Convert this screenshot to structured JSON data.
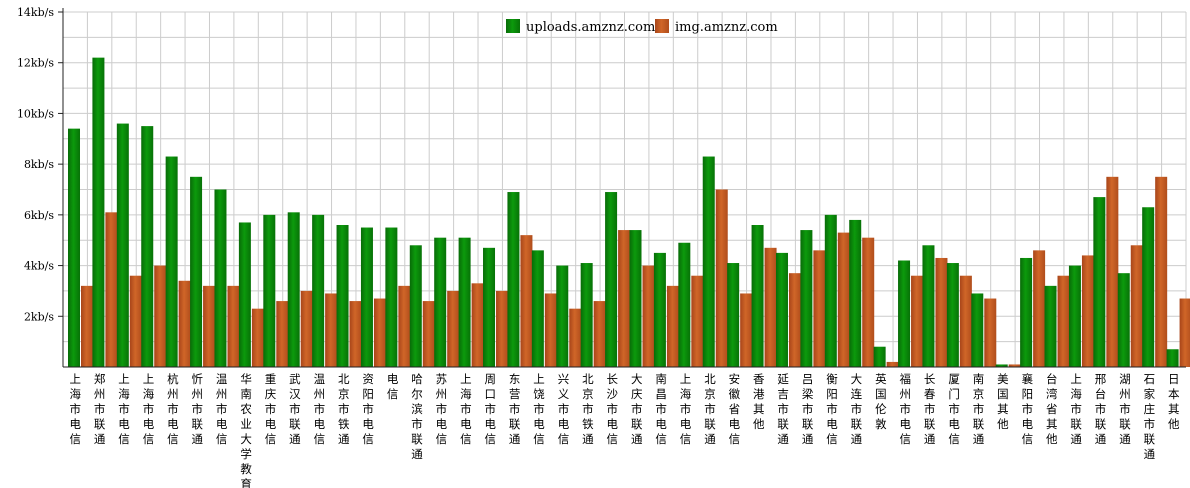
{
  "chart_data": {
    "type": "bar",
    "ylim": [
      0,
      14
    ],
    "yticks": [
      {
        "value": 2,
        "label": "2kb/s"
      },
      {
        "value": 4,
        "label": "4kb/s"
      },
      {
        "value": 6,
        "label": "6kb/s"
      },
      {
        "value": 8,
        "label": "8kb/s"
      },
      {
        "value": 10,
        "label": "10kb/s"
      },
      {
        "value": 12,
        "label": "12kb/s"
      },
      {
        "value": 14,
        "label": "14kb/s"
      }
    ],
    "grid": true,
    "legend_position": "top-center",
    "categories": [
      "上海市电信",
      "郑州市联通",
      "上海市电信",
      "上海市电信",
      "杭州市电信",
      "忻州市联通",
      "温州市电信",
      "华南农业大学教育",
      "重庆市电信",
      "武汉市联通",
      "温州市电信",
      "北京市铁通",
      "资阳市电信",
      "电信",
      "哈尔滨市联通",
      "苏州市电信",
      "上海市电信",
      "周口市电信",
      "东营市联通",
      "上饶市电信",
      "兴义市电信",
      "北京市铁通",
      "长沙市电信",
      "大庆市联通",
      "南昌市电信",
      "上海市电信",
      "北京市联通",
      "安徽省电信",
      "香港其他",
      "延吉市联通",
      "吕梁市联通",
      "衡阳市电信",
      "大连市联通",
      "英国伦敦",
      "福州市电信",
      "长春市联通",
      "厦门市电信",
      "南京市联通",
      "美国其他",
      "襄阳市电信",
      "台湾省其他",
      "上海市联通",
      "邢台市联通",
      "湖州市联通",
      "石家庄市联通",
      "日本其他"
    ],
    "series": [
      {
        "name": "uploads.amznz.com",
        "color": "#0a8a0a",
        "values": [
          9.4,
          12.2,
          9.6,
          9.5,
          8.3,
          7.5,
          7.0,
          5.7,
          6.0,
          6.1,
          6.0,
          5.6,
          5.5,
          5.5,
          4.8,
          5.1,
          5.1,
          4.7,
          6.9,
          4.6,
          4.0,
          4.1,
          6.9,
          5.4,
          4.5,
          4.9,
          8.3,
          4.1,
          5.6,
          4.5,
          5.4,
          6.0,
          5.8,
          0.8,
          4.2,
          4.8,
          4.1,
          2.9,
          0.1,
          4.3,
          3.2,
          4.0,
          6.7,
          3.7,
          6.3,
          0.7
        ]
      },
      {
        "name": "img.amznz.com",
        "color": "#c45a22",
        "values": [
          3.2,
          6.1,
          3.6,
          4.0,
          3.4,
          3.2,
          3.2,
          2.3,
          2.6,
          3.0,
          2.9,
          2.6,
          2.7,
          3.2,
          2.6,
          3.0,
          3.3,
          3.0,
          5.2,
          2.9,
          2.3,
          2.6,
          5.4,
          4.0,
          3.2,
          3.6,
          7.0,
          2.9,
          4.7,
          3.7,
          4.6,
          5.3,
          5.1,
          0.2,
          3.6,
          4.3,
          3.6,
          2.7,
          0.1,
          4.6,
          3.6,
          4.4,
          7.5,
          4.8,
          7.5,
          2.7
        ]
      }
    ]
  }
}
